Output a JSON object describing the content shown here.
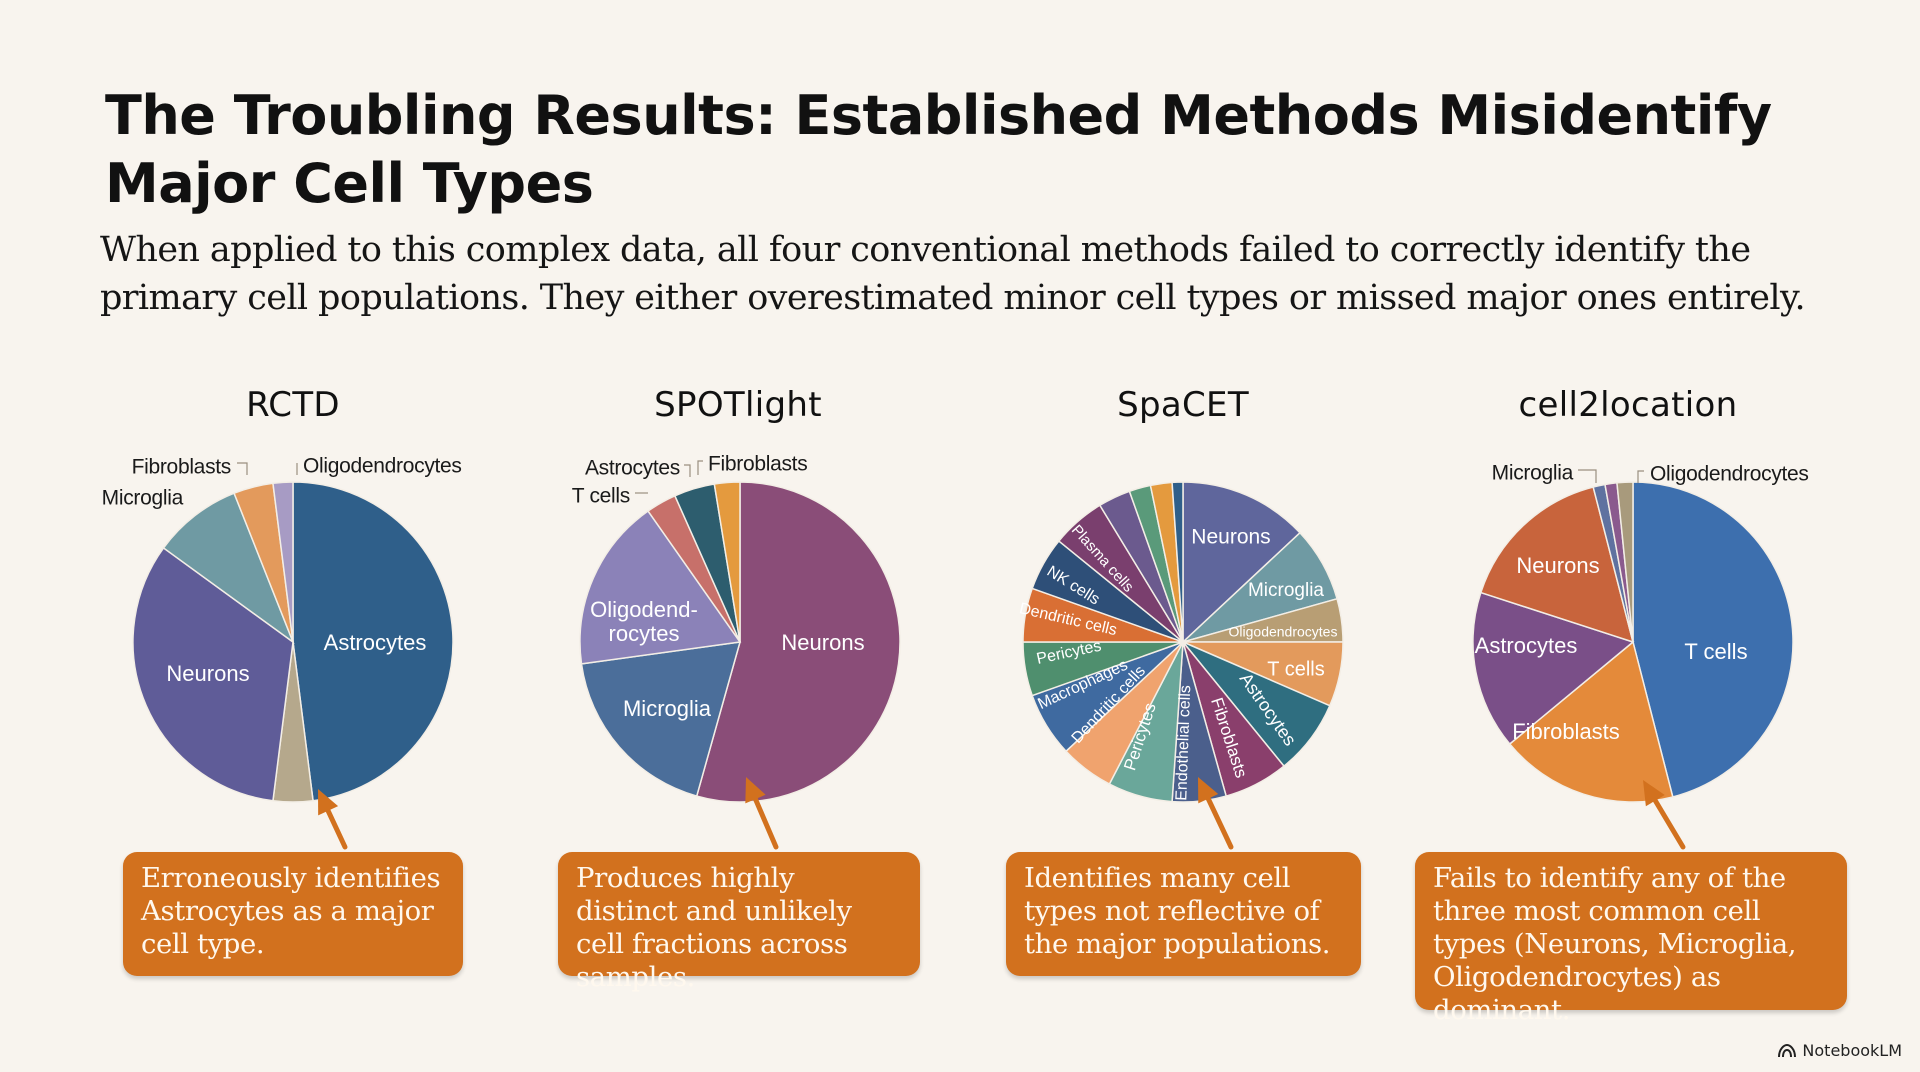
{
  "header": {
    "title": "The Troubling Results: Established Methods Misidentify Major Cell Types",
    "subtitle": "When applied to this complex data, all four conventional methods failed to correctly identify the primary cell populations. They either overestimated minor cell types or missed major ones entirely."
  },
  "footer": {
    "brand": "NotebookLM",
    "brand_icon": "notebooklm-logo-icon"
  },
  "chart_data": [
    {
      "type": "pie",
      "title": "RCTD",
      "slices": [
        {
          "label": "Astrocytes",
          "value": 48,
          "color": "#2f5f8a"
        },
        {
          "label": "",
          "value": 4,
          "color": "#b5a88c"
        },
        {
          "label": "Neurons",
          "value": 33,
          "color": "#5f5c98"
        },
        {
          "label": "Microglia",
          "value": 9,
          "color": "#6f9aa3"
        },
        {
          "label": "Fibroblasts",
          "value": 4,
          "color": "#e39a5c"
        },
        {
          "label": "Oligodendrocytes",
          "value": 2,
          "color": "#a79bc4"
        }
      ],
      "callout": "Erroneously identifies Astrocytes as a major cell type."
    },
    {
      "type": "pie",
      "title": "SPOTlight",
      "slices": [
        {
          "label": "Neurons",
          "value": 53,
          "color": "#8a4d78"
        },
        {
          "label": "Microglia",
          "value": 18,
          "color": "#4b6e9a"
        },
        {
          "label": "Oligodend-rocytes",
          "value": 17,
          "color": "#8b82b8"
        },
        {
          "label": "T cells",
          "value": 3,
          "color": "#c7706a"
        },
        {
          "label": "Astrocytes",
          "value": 4,
          "color": "#2d5d6e"
        },
        {
          "label": "Fibroblasts",
          "value": 2.5,
          "color": "#e49a3e"
        }
      ],
      "callout": "Produces highly distinct and unlikely cell fractions across samples."
    },
    {
      "type": "pie",
      "title": "SpaCET",
      "slices": [
        {
          "label": "Neurons",
          "value": 12,
          "color": "#5f669c"
        },
        {
          "label": "Microglia",
          "value": 7,
          "color": "#6f9aa3"
        },
        {
          "label": "Oligodendrocytes",
          "value": 4,
          "color": "#b89e74"
        },
        {
          "label": "T cells",
          "value": 6,
          "color": "#e39a5c"
        },
        {
          "label": "Astrocytes",
          "value": 7,
          "color": "#2f6e80"
        },
        {
          "label": "Fibroblasts",
          "value": 6,
          "color": "#8a3f6c"
        },
        {
          "label": "Endothelial cells",
          "value": 5,
          "color": "#4b5f8c"
        },
        {
          "label": "Pericytes",
          "value": 6,
          "color": "#6aa79a"
        },
        {
          "label": "Dendritic cells",
          "value": 5,
          "color": "#f0a36e"
        },
        {
          "label": "Macrophages",
          "value": 6,
          "color": "#3f6aa0"
        },
        {
          "label": "Pericytes",
          "value": 5,
          "color": "#4f8f6e"
        },
        {
          "label": "Dendritic cells",
          "value": 5,
          "color": "#d96f34"
        },
        {
          "label": "NK cells",
          "value": 5,
          "color": "#2e4f78"
        },
        {
          "label": "Plasma cells",
          "value": 5,
          "color": "#7a3f6e"
        },
        {
          "label": "",
          "value": 3,
          "color": "#6b5a8e"
        },
        {
          "label": "",
          "value": 2,
          "color": "#5a9a7a"
        },
        {
          "label": "",
          "value": 2,
          "color": "#e49a3e"
        },
        {
          "label": "",
          "value": 1,
          "color": "#2f5f8a"
        }
      ],
      "callout": "Identifies many cell types not reflective of the major populations."
    },
    {
      "type": "pie",
      "title": "cell2location",
      "slices": [
        {
          "label": "T cells",
          "value": 46,
          "color": "#3d6fae"
        },
        {
          "label": "Fibroblasts",
          "value": 18,
          "color": "#e48a3a"
        },
        {
          "label": "Astrocytes",
          "value": 16,
          "color": "#7a4f88"
        },
        {
          "label": "Neurons",
          "value": 16,
          "color": "#c8643c"
        },
        {
          "label": "Microglia",
          "value": 1.2,
          "color": "#5f72a0"
        },
        {
          "label": "",
          "value": 1.2,
          "color": "#8a5a8e"
        },
        {
          "label": "Oligodendrocytes",
          "value": 1.6,
          "color": "#a89a7c"
        }
      ],
      "callout": "Fails to identify any of the three most common cell types (Neurons, Microglia, Oligodendrocytes) as dominant."
    }
  ]
}
